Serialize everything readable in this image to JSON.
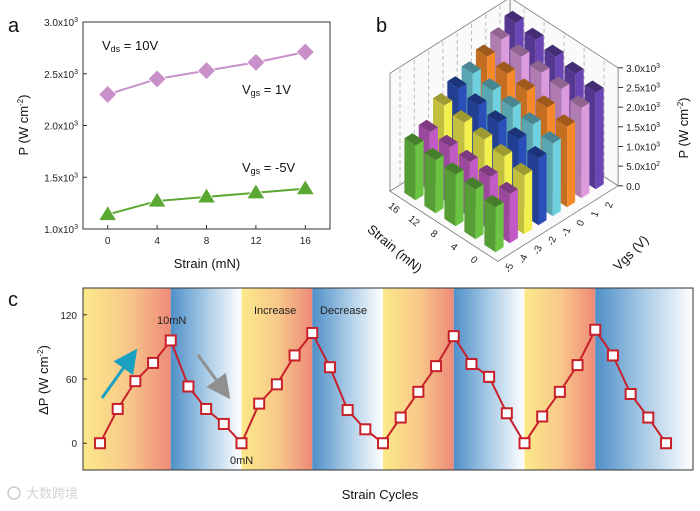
{
  "panels": {
    "a": "a",
    "b": "b",
    "c": "c"
  },
  "watermark": "大数跨境",
  "chart_data": [
    {
      "panel": "a",
      "type": "line",
      "xlabel": "Strain (mN)",
      "ylabel": "P (W cm",
      "ylabel_sup": "-2",
      "x": [
        0,
        4,
        8,
        12,
        16
      ],
      "xlim": [
        -2,
        18
      ],
      "ylim": [
        1000,
        3000
      ],
      "yticks": [
        1000,
        1500,
        2000,
        2500,
        3000
      ],
      "ytick_labels": [
        "1.0x10",
        "1.5x10",
        "2.0x10",
        "2.5x10",
        "3.0x10"
      ],
      "ytick_sup": "3",
      "annotations": {
        "vds": {
          "main": "V",
          "sub": "ds",
          "rest": " = 10V"
        },
        "vgs1": {
          "main": "V",
          "sub": "gs",
          "rest": " = 1V"
        },
        "vgs2": {
          "main": "V",
          "sub": "gs",
          "rest": " = -5V"
        }
      },
      "series": [
        {
          "name": "Vgs = 1V",
          "marker": "diamond",
          "color": "#c98fc9",
          "values": [
            2300,
            2450,
            2530,
            2610,
            2710
          ]
        },
        {
          "name": "Vgs = -5V",
          "marker": "triangle",
          "color": "#5aa832",
          "values": [
            1140,
            1270,
            1310,
            1350,
            1390
          ]
        }
      ]
    },
    {
      "panel": "b",
      "type": "bar3d",
      "xlabel": "Strain (mN)",
      "ylabel": "Vgs (V)",
      "zlabel": "P (W cm",
      "zlabel_sup": "-2",
      "strain": [
        0,
        4,
        8,
        12,
        16
      ],
      "vgs": [
        -5,
        -4,
        -3,
        -2,
        -1,
        0,
        1,
        2
      ],
      "zlim": [
        0,
        3000
      ],
      "zticks": [
        0,
        500,
        1000,
        1500,
        2000,
        2500,
        3000
      ],
      "ztick_labels": [
        "0.0",
        "5.0x10",
        "1.0x10",
        "1.5x10",
        "2.0x10",
        "2.5x10",
        "3.0x10"
      ],
      "ztick_sups": [
        "",
        "2",
        "3",
        "3",
        "3",
        "3",
        "3"
      ],
      "series": [
        {
          "vgs": -5,
          "color": "#6cc443",
          "values": [
            1140,
            1270,
            1310,
            1350,
            1390
          ]
        },
        {
          "vgs": -4,
          "color": "#c25ac6",
          "values": [
            1250,
            1350,
            1400,
            1450,
            1500
          ]
        },
        {
          "vgs": -3,
          "color": "#f3ef4e",
          "values": [
            1500,
            1650,
            1750,
            1850,
            1950
          ]
        },
        {
          "vgs": -2,
          "color": "#2a4fb8",
          "values": [
            1700,
            1850,
            1950,
            2050,
            2150
          ]
        },
        {
          "vgs": -1,
          "color": "#6fd0df",
          "values": [
            1850,
            2000,
            2100,
            2200,
            2300
          ]
        },
        {
          "vgs": 0,
          "color": "#f58a2a",
          "values": [
            2050,
            2200,
            2300,
            2400,
            2500
          ]
        },
        {
          "vgs": 1,
          "color": "#dc9bdc",
          "values": [
            2300,
            2450,
            2530,
            2610,
            2710
          ]
        },
        {
          "vgs": 2,
          "color": "#6a45b5",
          "values": [
            2450,
            2600,
            2700,
            2800,
            2900
          ]
        }
      ]
    },
    {
      "panel": "c",
      "type": "line",
      "xlabel": "Strain Cycles",
      "ylabel": "ΔP (W cm",
      "ylabel_sup": "-2",
      "ylim": [
        -25,
        145
      ],
      "yticks": [
        0,
        60,
        120
      ],
      "color": "#c8202a",
      "values": [
        0,
        32,
        58,
        75,
        96,
        53,
        32,
        18,
        0,
        37,
        55,
        82,
        103,
        71,
        31,
        13,
        0,
        24,
        48,
        72,
        100,
        74,
        62,
        28,
        0,
        25,
        48,
        73,
        106,
        82,
        46,
        24,
        0
      ],
      "bands": [
        "increase",
        "decrease",
        "increase",
        "decrease",
        "increase",
        "decrease",
        "increase",
        "decrease"
      ],
      "annotations": {
        "peak": "10mN",
        "zero": "0mN",
        "increase": "Increase",
        "decrease": "Decrease"
      },
      "arrows": {
        "up": "#1aa0c0",
        "down": "#909090"
      }
    }
  ]
}
